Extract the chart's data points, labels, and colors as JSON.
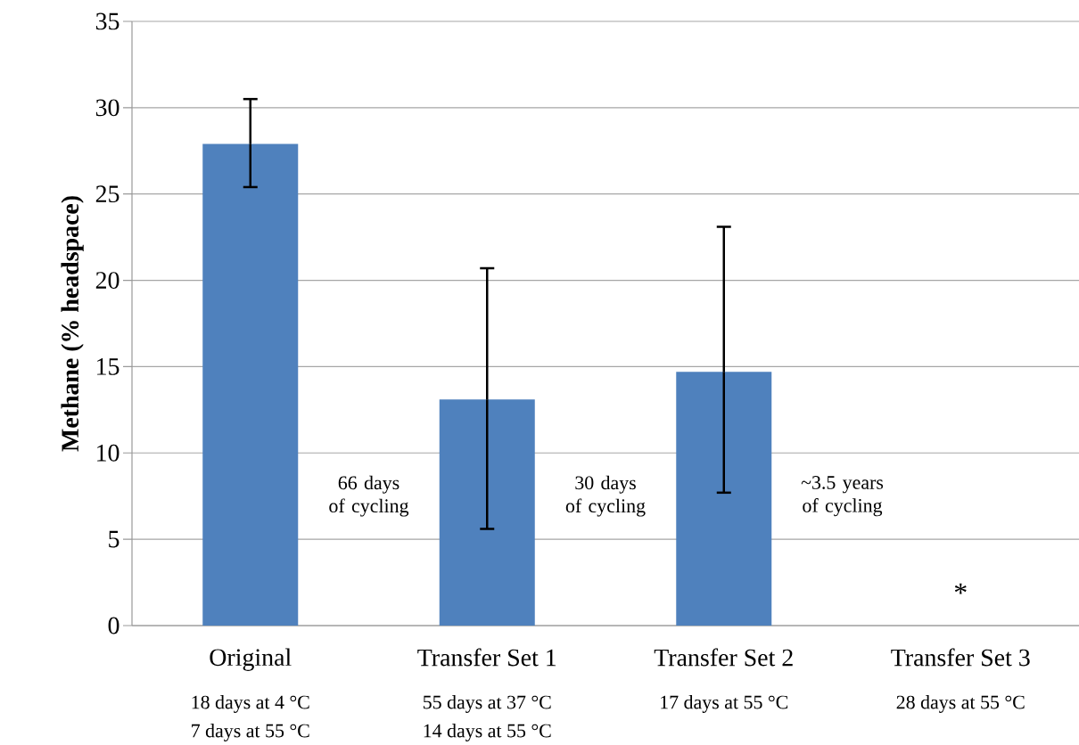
{
  "chart_data": {
    "type": "bar",
    "ylabel": "Methane (% headspace)",
    "categories": [
      "Original",
      "Transfer Set 1",
      "Transfer Set 2",
      "Transfer Set 3"
    ],
    "values": [
      27.9,
      13.1,
      14.7,
      null
    ],
    "errors": [
      [
        25.4,
        30.5
      ],
      [
        5.6,
        20.7
      ],
      [
        7.7,
        23.1
      ],
      null
    ],
    "color": "#4f81bd",
    "ylim": [
      0,
      35
    ],
    "yticks": [
      0,
      5,
      10,
      15,
      20,
      25,
      30,
      35
    ],
    "grid": "y",
    "annotations": [
      "66 days of cycling",
      "30 days of cycling",
      "~3.5 years of cycling",
      "*",
      "18 days at 4 °C",
      "7 days at 55 °C",
      "55 days at 37 °C",
      "14 days at 55 °C",
      "17 days at 55 °C",
      "28 days at 55 °C"
    ]
  }
}
